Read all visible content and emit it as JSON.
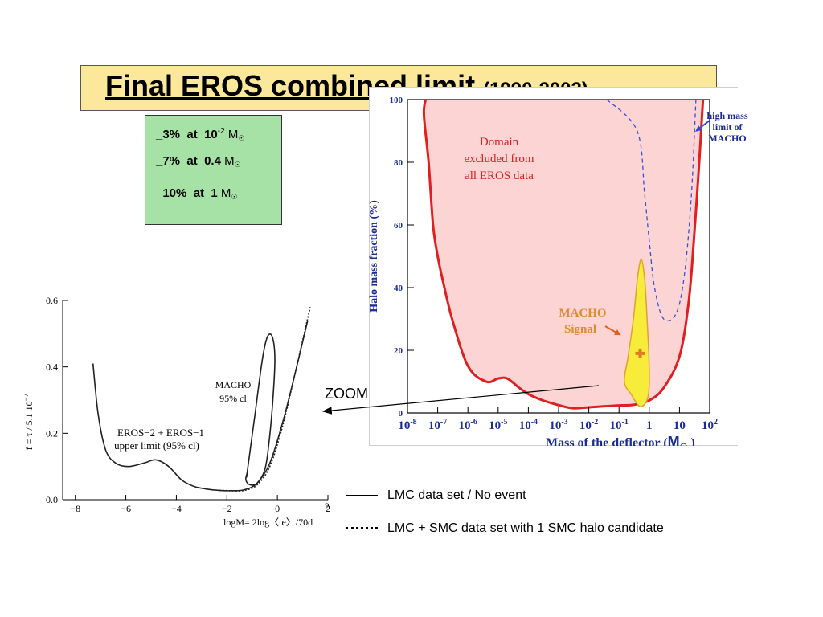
{
  "title": {
    "main": "Final EROS combined limit",
    "years": "(1990-2003)"
  },
  "limits": [
    {
      "pct": "_3%",
      "at": "at",
      "mass": "10",
      "exp": "-2",
      "unit": "M"
    },
    {
      "pct": "_7%",
      "at": "at",
      "mass": "0.4",
      "exp": "",
      "unit": "M"
    },
    {
      "pct": "_10%",
      "at": "at",
      "mass": "1",
      "exp": "",
      "unit": "M"
    }
  ],
  "zoom_label": "ZOOM",
  "legend": [
    {
      "line": "solid",
      "text": "LMC data set / No event"
    },
    {
      "line": "dotted",
      "text": "LMC + SMC data set  with 1 SMC halo candidate"
    }
  ],
  "colors": {
    "excluded_fill": "#fcd4d4",
    "excluded_line": "#e02020",
    "high_mass_line": "#3a4fd8",
    "macho_fill": "#f7ec3a",
    "macho_edge": "#e0a030",
    "title_bg": "#fce89a",
    "limits_bg": "#a6e2a6"
  },
  "chart_data": [
    {
      "type": "area",
      "title": "",
      "xlabel": "Mass of the deflector (M)",
      "ylabel": "Halo mass fraction (%)",
      "x_scale": "log",
      "x_ticks": [
        "10-8",
        "10-7",
        "10-6",
        "10-5",
        "10-4",
        "10-3",
        "10-2",
        "10-1",
        "1",
        "10",
        "102"
      ],
      "x_tick_values": [
        1e-08,
        1e-07,
        1e-06,
        1e-05,
        0.0001,
        0.001,
        0.01,
        0.1,
        1,
        10,
        100
      ],
      "y_ticks": [
        "0",
        "20",
        "40",
        "60",
        "80",
        "100"
      ],
      "ylim": [
        0,
        100
      ],
      "xlim": [
        1e-08,
        100
      ],
      "series": [
        {
          "name": "",
          "style": "solid",
          "x": [
            4e-08,
            3.5e-08,
            5e-08,
            7e-08,
            1e-07,
            1.5e-07,
            3e-07,
            1e-06,
            4e-06,
            1e-05,
            2e-05,
            5e-05,
            0.0001,
            0.0003,
            0.001,
            0.003,
            0.01,
            0.03,
            0.1,
            0.3,
            1,
            3,
            10,
            20,
            30,
            45,
            60
          ],
          "y": [
            100,
            95,
            80,
            60,
            50,
            42,
            30,
            15,
            10,
            11,
            11,
            8,
            6,
            4,
            2.5,
            1.5,
            1.8,
            2.1,
            2.4,
            2.6,
            4,
            8,
            18,
            35,
            55,
            80,
            100
          ]
        },
        {
          "name": "high mass limit of MACHO",
          "style": "dashed",
          "x": [
            0.04,
            0.4,
            0.7,
            1,
            1.5,
            3,
            8,
            15,
            25,
            35
          ],
          "y": [
            100,
            90,
            70,
            55,
            40,
            30,
            32,
            45,
            70,
            100
          ]
        }
      ],
      "regions": [
        {
          "name": "excluded",
          "label": "Domain excluded from all EROS data"
        },
        {
          "name": "MACHO signal",
          "label": "MACHO Signal",
          "center": [
            0.5,
            19
          ]
        }
      ],
      "annotations": [
        "Domain excluded from all EROS data",
        "MACHO Signal",
        "high mass limit of MACHO"
      ]
    },
    {
      "type": "line",
      "title": "",
      "xlabel": "logM= 2log〈te〉/70d",
      "x_label_exponent": "2",
      "ylabel": "f = τ / 5.1 10",
      "y_label_exponent": "−7",
      "x_ticks": [
        "−8",
        "−6",
        "−4",
        "−2",
        "0",
        "2"
      ],
      "x_tick_values": [
        -8,
        -6,
        -4,
        -2,
        0,
        2
      ],
      "y_ticks": [
        "0.0",
        "0.2",
        "0.4",
        "0.6"
      ],
      "y_tick_values": [
        0.0,
        0.2,
        0.4,
        0.6
      ],
      "xlim": [
        -8.5,
        2
      ],
      "ylim": [
        0,
        0.6
      ],
      "series": [
        {
          "name": "EROS−2 + EROS−1 upper limit (95% cl)",
          "style": "solid",
          "x": [
            -7.3,
            -7.1,
            -6.8,
            -6.4,
            -5.9,
            -5.3,
            -4.8,
            -4.3,
            -3.8,
            -3.3,
            -2.8,
            -2.3,
            -1.8,
            -1.3,
            -0.8,
            -0.3,
            0.2,
            0.7,
            1.2
          ],
          "y": [
            0.41,
            0.26,
            0.15,
            0.11,
            0.1,
            0.11,
            0.12,
            0.1,
            0.06,
            0.04,
            0.032,
            0.028,
            0.027,
            0.03,
            0.05,
            0.11,
            0.23,
            0.38,
            0.54
          ]
        },
        {
          "name": "LMC + SMC",
          "style": "dotted",
          "x": [
            -2.3,
            -1.8,
            -1.3,
            -0.8,
            -0.3,
            0.2,
            0.7,
            1.3
          ],
          "y": [
            0.028,
            0.027,
            0.028,
            0.045,
            0.1,
            0.22,
            0.38,
            0.58
          ]
        },
        {
          "name": "MACHO 95% cl",
          "style": "solid-closed",
          "x": [
            -1.2,
            -0.9,
            -0.6,
            -0.4,
            -0.2,
            -0.1,
            -0.2,
            -0.35,
            -0.5,
            -0.8,
            -1.1,
            -1.25,
            -1.2
          ],
          "y": [
            0.08,
            0.25,
            0.42,
            0.49,
            0.49,
            0.42,
            0.28,
            0.16,
            0.09,
            0.05,
            0.045,
            0.06,
            0.08
          ]
        }
      ],
      "annotations": [
        {
          "text": "MACHO",
          "line2": "95% cl"
        },
        {
          "text": "EROS−2 + EROS−1",
          "line2": "upper limit (95% cl)"
        }
      ]
    }
  ]
}
